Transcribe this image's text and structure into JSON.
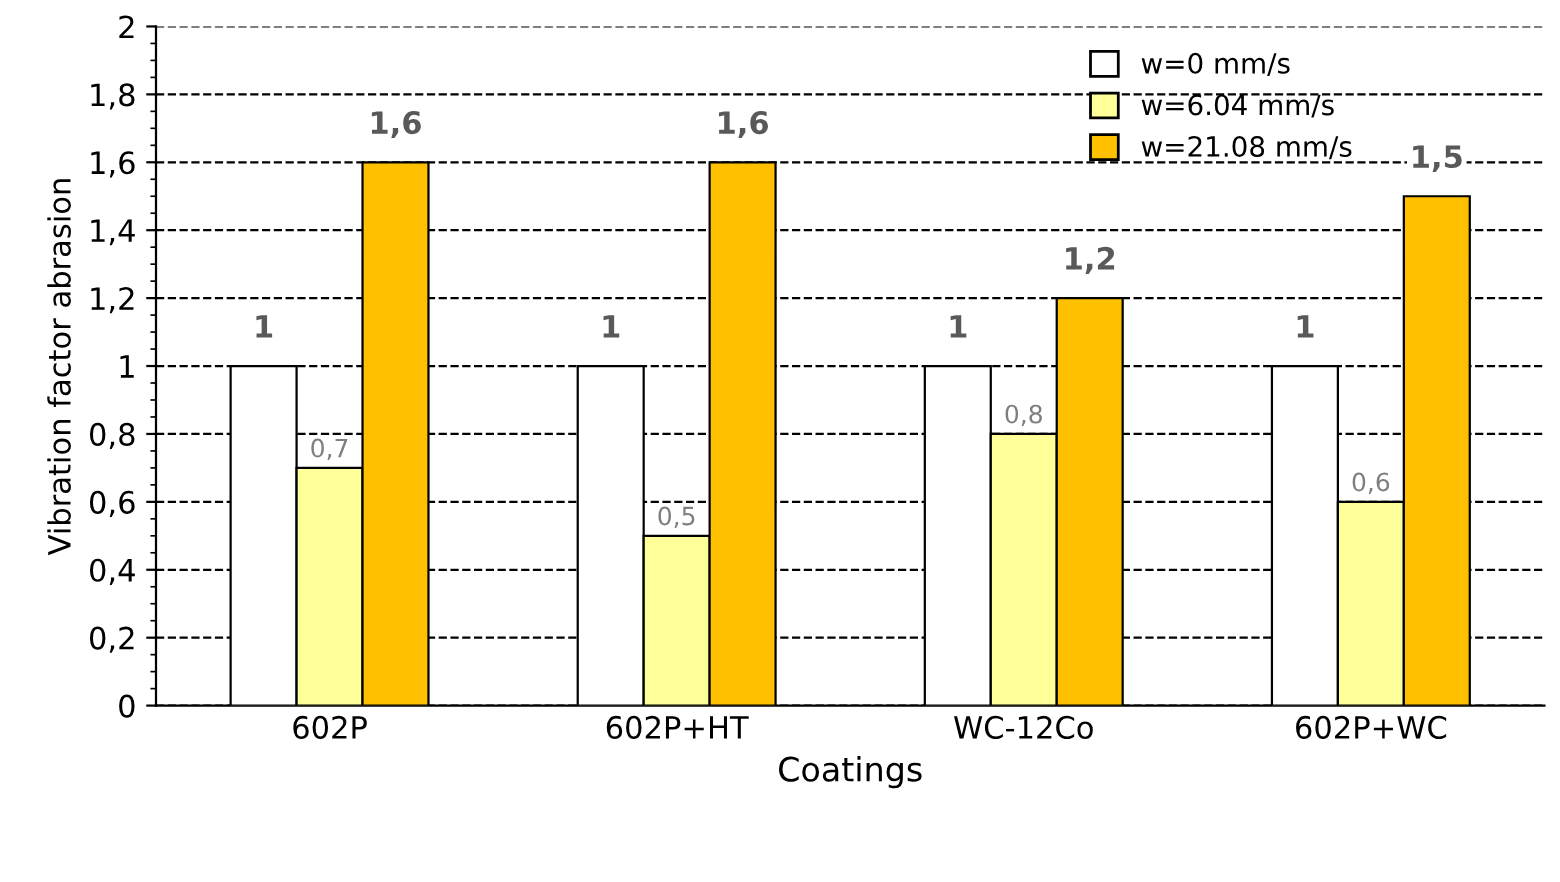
{
  "chart_data": {
    "type": "bar",
    "xlabel": "Coatings",
    "ylabel": "Vibration factor abrasion",
    "categories": [
      "602P",
      "602P+HT",
      "WC-12Co",
      "602P+WC"
    ],
    "series": [
      {
        "name": "w=0 mm/s",
        "color": "#ffffff",
        "values": [
          1,
          1,
          1,
          1
        ],
        "value_labels": [
          "1",
          "1",
          "1",
          "1"
        ]
      },
      {
        "name": "w=6.04 mm/s",
        "color": "#ffff99",
        "values": [
          0.7,
          0.5,
          0.8,
          0.6
        ],
        "value_labels": [
          "0,7",
          "0,5",
          "0,8",
          "0,6"
        ]
      },
      {
        "name": "w=21.08 mm/s",
        "color": "#ffc000",
        "values": [
          1.6,
          1.6,
          1.2,
          1.5
        ],
        "value_labels": [
          "1,6",
          "1,6",
          "1,2",
          "1,5"
        ]
      }
    ],
    "ylim": [
      0,
      2
    ],
    "yticks": [
      0,
      {
        "value": 0.2,
        "label": "0,2"
      },
      {
        "value": 0.4,
        "label": "0,4"
      },
      {
        "value": 0.6,
        "label": "0,6"
      },
      {
        "value": 0.8,
        "label": "0,8"
      },
      1,
      {
        "value": 1.2,
        "label": "1,2"
      },
      {
        "value": 1.4,
        "label": "1,4"
      },
      {
        "value": 1.6,
        "label": "1,6"
      },
      {
        "value": 1.8,
        "label": "1,8"
      },
      2
    ],
    "grid": "y",
    "legend": "top right"
  }
}
